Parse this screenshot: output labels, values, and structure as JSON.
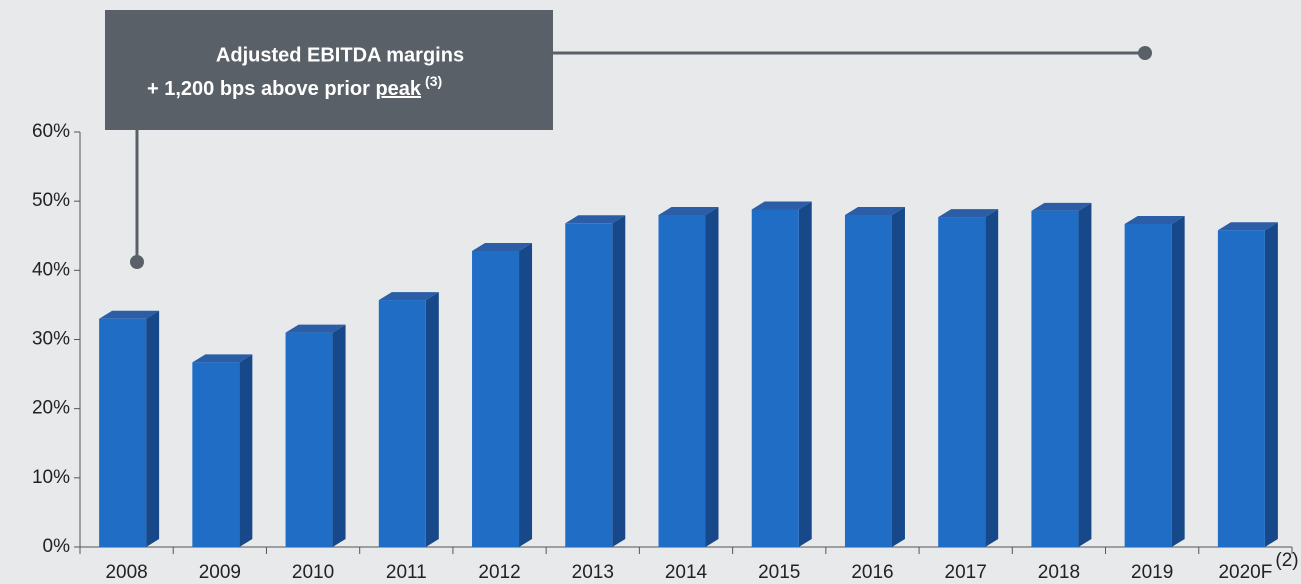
{
  "chart_data": {
    "type": "bar3d",
    "categories": [
      "2008",
      "2009",
      "2010",
      "2011",
      "2012",
      "2013",
      "2014",
      "2015",
      "2016",
      "2017",
      "2018",
      "2019",
      "2020F"
    ],
    "category_footnote": "(2)",
    "values": [
      33,
      26.7,
      31,
      35.7,
      42.8,
      46.8,
      48,
      48.8,
      48,
      47.7,
      48.6,
      46.7,
      45.8
    ],
    "color": "#1f6dc5",
    "ylim": [
      0,
      60
    ],
    "yticks": [
      {
        "value": 0,
        "label": "0%"
      },
      {
        "value": 10,
        "label": "10%"
      },
      {
        "value": 20,
        "label": "20%"
      },
      {
        "value": 30,
        "label": "30%"
      },
      {
        "value": 40,
        "label": "40%"
      },
      {
        "value": 50,
        "label": "50%"
      },
      {
        "value": 60,
        "label": "60%"
      }
    ],
    "grid": false,
    "annotation": {
      "line1": "Adjusted EBITDA margins",
      "line2": "+ 1,200 bps above prior",
      "underlined": "peak",
      "footnote": "(3)"
    }
  }
}
